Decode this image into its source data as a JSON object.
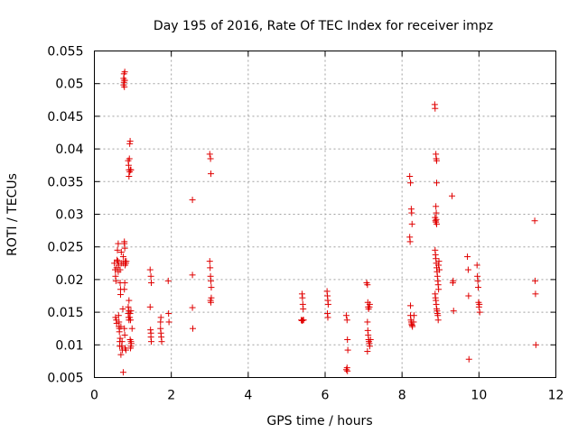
{
  "chart_data": {
    "type": "scatter",
    "title": "Day 195 of 2016, Rate Of TEC Index for receiver impz",
    "xlabel": "GPS time / hours",
    "ylabel": "ROTI / TECUs",
    "xlim": [
      0,
      12
    ],
    "ylim": [
      0.005,
      0.055
    ],
    "xticks": [
      0,
      2,
      4,
      6,
      8,
      10,
      12
    ],
    "xtick_labels": [
      "0",
      "2",
      "4",
      "6",
      "8",
      "10",
      "12"
    ],
    "yticks": [
      0.005,
      0.01,
      0.015,
      0.02,
      0.025,
      0.03,
      0.035,
      0.04,
      0.045,
      0.05,
      0.055
    ],
    "ytick_labels": [
      "0.005",
      "0.01",
      "0.015",
      "0.02",
      "0.025",
      "0.03",
      "0.035",
      "0.04",
      "0.045",
      "0.05",
      "0.055"
    ],
    "grid": true,
    "marker": "+",
    "color": "#e00000",
    "series": [
      {
        "name": "ROTI",
        "points": [
          [
            0.52,
            0.0225
          ],
          [
            0.54,
            0.0215
          ],
          [
            0.55,
            0.0205
          ],
          [
            0.56,
            0.0198
          ],
          [
            0.55,
            0.0142
          ],
          [
            0.57,
            0.0138
          ],
          [
            0.58,
            0.0133
          ],
          [
            0.58,
            0.0218
          ],
          [
            0.59,
            0.023
          ],
          [
            0.6,
            0.0245
          ],
          [
            0.61,
            0.0228
          ],
          [
            0.62,
            0.0212
          ],
          [
            0.63,
            0.0222
          ],
          [
            0.62,
            0.0255
          ],
          [
            0.63,
            0.0145
          ],
          [
            0.64,
            0.0135
          ],
          [
            0.64,
            0.0128
          ],
          [
            0.65,
            0.0125
          ],
          [
            0.65,
            0.012
          ],
          [
            0.66,
            0.0105
          ],
          [
            0.66,
            0.0098
          ],
          [
            0.67,
            0.011
          ],
          [
            0.67,
            0.0215
          ],
          [
            0.67,
            0.0195
          ],
          [
            0.68,
            0.0177
          ],
          [
            0.68,
            0.0185
          ],
          [
            0.69,
            0.0128
          ],
          [
            0.69,
            0.0085
          ],
          [
            0.7,
            0.0225
          ],
          [
            0.7,
            0.0242
          ],
          [
            0.71,
            0.0098
          ],
          [
            0.72,
            0.0105
          ],
          [
            0.73,
            0.0092
          ],
          [
            0.74,
            0.0155
          ],
          [
            0.75,
            0.0225
          ],
          [
            0.75,
            0.0235
          ],
          [
            0.76,
            0.0508
          ],
          [
            0.76,
            0.0498
          ],
          [
            0.77,
            0.0515
          ],
          [
            0.77,
            0.0502
          ],
          [
            0.78,
            0.0505
          ],
          [
            0.78,
            0.0495
          ],
          [
            0.79,
            0.0505
          ],
          [
            0.79,
            0.0518
          ],
          [
            0.78,
            0.0255
          ],
          [
            0.78,
            0.0258
          ],
          [
            0.79,
            0.0248
          ],
          [
            0.8,
            0.0228
          ],
          [
            0.8,
            0.0222
          ],
          [
            0.82,
            0.0225
          ],
          [
            0.83,
            0.0228
          ],
          [
            0.78,
            0.0125
          ],
          [
            0.79,
            0.0115
          ],
          [
            0.8,
            0.0095
          ],
          [
            0.82,
            0.0092
          ],
          [
            0.75,
            0.0058
          ],
          [
            0.78,
            0.0185
          ],
          [
            0.79,
            0.0195
          ],
          [
            0.88,
            0.0158
          ],
          [
            0.88,
            0.0148
          ],
          [
            0.89,
            0.0142
          ],
          [
            0.9,
            0.0138
          ],
          [
            0.9,
            0.0152
          ],
          [
            0.9,
            0.0168
          ],
          [
            0.88,
            0.0382
          ],
          [
            0.89,
            0.0375
          ],
          [
            0.9,
            0.0368
          ],
          [
            0.9,
            0.0358
          ],
          [
            0.91,
            0.0385
          ],
          [
            0.92,
            0.0408
          ],
          [
            0.92,
            0.0365
          ],
          [
            0.93,
            0.0412
          ],
          [
            0.94,
            0.0368
          ],
          [
            0.95,
            0.0368
          ],
          [
            0.92,
            0.0142
          ],
          [
            0.93,
            0.0148
          ],
          [
            0.94,
            0.0138
          ],
          [
            0.95,
            0.0152
          ],
          [
            0.96,
            0.0102
          ],
          [
            0.93,
            0.0108
          ],
          [
            0.94,
            0.0095
          ],
          [
            0.95,
            0.0098
          ],
          [
            0.95,
            0.0105
          ],
          [
            0.98,
            0.0125
          ],
          [
            1.45,
            0.0215
          ],
          [
            1.47,
            0.0205
          ],
          [
            1.48,
            0.0195
          ],
          [
            1.45,
            0.0158
          ],
          [
            1.46,
            0.0123
          ],
          [
            1.47,
            0.0118
          ],
          [
            1.47,
            0.0112
          ],
          [
            1.48,
            0.0105
          ],
          [
            1.72,
            0.0135
          ],
          [
            1.72,
            0.0125
          ],
          [
            1.73,
            0.0118
          ],
          [
            1.74,
            0.0112
          ],
          [
            1.75,
            0.0105
          ],
          [
            1.73,
            0.0142
          ],
          [
            1.92,
            0.0198
          ],
          [
            1.93,
            0.0148
          ],
          [
            1.94,
            0.0135
          ],
          [
            2.55,
            0.0322
          ],
          [
            2.55,
            0.0207
          ],
          [
            2.55,
            0.0157
          ],
          [
            2.56,
            0.0125
          ],
          [
            3.0,
            0.0392
          ],
          [
            3.02,
            0.0385
          ],
          [
            3.03,
            0.0362
          ],
          [
            3.0,
            0.0228
          ],
          [
            3.01,
            0.0218
          ],
          [
            3.02,
            0.0205
          ],
          [
            3.03,
            0.0198
          ],
          [
            3.04,
            0.0188
          ],
          [
            3.02,
            0.0168
          ],
          [
            3.03,
            0.0165
          ],
          [
            3.04,
            0.0172
          ],
          [
            5.4,
            0.0178
          ],
          [
            5.41,
            0.0172
          ],
          [
            5.42,
            0.0162
          ],
          [
            5.43,
            0.0155
          ],
          [
            5.38,
            0.0138
          ],
          [
            5.4,
            0.0137
          ],
          [
            5.42,
            0.0138
          ],
          [
            5.44,
            0.0138
          ],
          [
            6.05,
            0.0182
          ],
          [
            6.06,
            0.0175
          ],
          [
            6.07,
            0.0168
          ],
          [
            6.08,
            0.0162
          ],
          [
            6.06,
            0.0148
          ],
          [
            6.07,
            0.0142
          ],
          [
            6.55,
            0.0145
          ],
          [
            6.57,
            0.0138
          ],
          [
            6.58,
            0.0108
          ],
          [
            6.59,
            0.0092
          ],
          [
            6.55,
            0.0062
          ],
          [
            6.57,
            0.0065
          ],
          [
            6.58,
            0.006
          ],
          [
            7.08,
            0.0195
          ],
          [
            7.1,
            0.0192
          ],
          [
            7.11,
            0.0165
          ],
          [
            7.12,
            0.0158
          ],
          [
            7.13,
            0.0155
          ],
          [
            7.15,
            0.0158
          ],
          [
            7.16,
            0.0162
          ],
          [
            7.1,
            0.0135
          ],
          [
            7.11,
            0.0122
          ],
          [
            7.12,
            0.0115
          ],
          [
            7.13,
            0.0108
          ],
          [
            7.14,
            0.0105
          ],
          [
            7.15,
            0.0102
          ],
          [
            7.16,
            0.0098
          ],
          [
            7.18,
            0.0108
          ],
          [
            7.1,
            0.009
          ],
          [
            8.2,
            0.0358
          ],
          [
            8.22,
            0.0348
          ],
          [
            8.24,
            0.0308
          ],
          [
            8.25,
            0.0302
          ],
          [
            8.26,
            0.0285
          ],
          [
            8.2,
            0.0265
          ],
          [
            8.21,
            0.0258
          ],
          [
            8.22,
            0.016
          ],
          [
            8.22,
            0.0145
          ],
          [
            8.23,
            0.0138
          ],
          [
            8.24,
            0.0135
          ],
          [
            8.25,
            0.0132
          ],
          [
            8.26,
            0.013
          ],
          [
            8.27,
            0.0128
          ],
          [
            8.3,
            0.0135
          ],
          [
            8.31,
            0.0145
          ],
          [
            8.85,
            0.0468
          ],
          [
            8.86,
            0.0462
          ],
          [
            8.88,
            0.0392
          ],
          [
            8.89,
            0.0385
          ],
          [
            8.9,
            0.0382
          ],
          [
            8.9,
            0.0348
          ],
          [
            8.88,
            0.0312
          ],
          [
            8.89,
            0.0302
          ],
          [
            8.86,
            0.0295
          ],
          [
            8.87,
            0.029
          ],
          [
            8.88,
            0.0288
          ],
          [
            8.89,
            0.0292
          ],
          [
            8.9,
            0.0285
          ],
          [
            8.86,
            0.0245
          ],
          [
            8.87,
            0.0238
          ],
          [
            8.88,
            0.0232
          ],
          [
            8.89,
            0.0225
          ],
          [
            8.9,
            0.0218
          ],
          [
            8.91,
            0.0212
          ],
          [
            8.92,
            0.0205
          ],
          [
            8.93,
            0.0198
          ],
          [
            8.94,
            0.0192
          ],
          [
            8.95,
            0.0185
          ],
          [
            8.86,
            0.0178
          ],
          [
            8.87,
            0.0172
          ],
          [
            8.88,
            0.0168
          ],
          [
            8.89,
            0.0162
          ],
          [
            8.9,
            0.0155
          ],
          [
            8.91,
            0.0152
          ],
          [
            8.92,
            0.0148
          ],
          [
            8.93,
            0.0145
          ],
          [
            8.94,
            0.0138
          ],
          [
            8.95,
            0.0222
          ],
          [
            8.96,
            0.0228
          ],
          [
            8.97,
            0.0215
          ],
          [
            9.3,
            0.0328
          ],
          [
            9.32,
            0.0195
          ],
          [
            9.33,
            0.0198
          ],
          [
            9.34,
            0.0152
          ],
          [
            9.7,
            0.0235
          ],
          [
            9.72,
            0.0215
          ],
          [
            9.73,
            0.0175
          ],
          [
            9.74,
            0.0078
          ],
          [
            9.95,
            0.0222
          ],
          [
            9.96,
            0.0205
          ],
          [
            9.97,
            0.0198
          ],
          [
            9.98,
            0.0188
          ],
          [
            9.99,
            0.0165
          ],
          [
            10.0,
            0.0158
          ],
          [
            10.01,
            0.0162
          ],
          [
            10.02,
            0.015
          ],
          [
            11.45,
            0.029
          ],
          [
            11.46,
            0.0198
          ],
          [
            11.47,
            0.0178
          ],
          [
            11.48,
            0.01
          ]
        ]
      }
    ]
  }
}
